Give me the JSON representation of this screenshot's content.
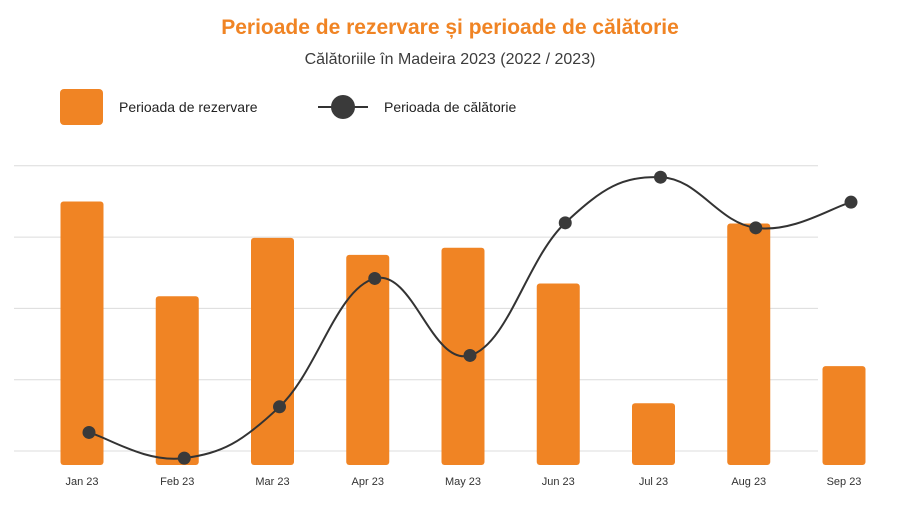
{
  "chart_data": {
    "type": "bar",
    "title": "Perioade de rezervare și perioade de călătorie",
    "subtitle": "Călătoriile în Madeira 2023 (2022 / 2023)",
    "categories": [
      "Jan 23",
      "Feb 23",
      "Mar 23",
      "Apr 23",
      "May 23",
      "Jun 23",
      "Jul 23",
      "Aug 23",
      "Sep 23"
    ],
    "series": [
      {
        "name": "Perioada de rezervare",
        "type": "bar",
        "color": "#F08424",
        "values": [
          3.5,
          2.17,
          2.99,
          2.75,
          2.85,
          2.35,
          0.67,
          3.19,
          1.19
        ]
      },
      {
        "name": "Perioada de călătorie",
        "type": "line",
        "color": "#3a3a3a",
        "values": [
          0.26,
          -0.1,
          0.62,
          2.42,
          1.34,
          3.2,
          3.84,
          3.13,
          3.49
        ]
      }
    ],
    "ylim": [
      0,
      4.2
    ],
    "grid": true,
    "legend": "top-left",
    "xlabel": "",
    "ylabel": ""
  }
}
